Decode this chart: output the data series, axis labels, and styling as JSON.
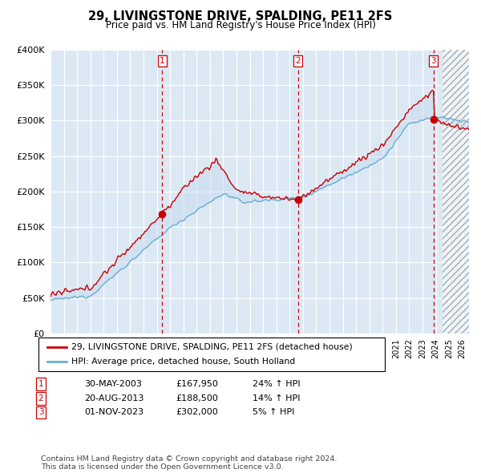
{
  "title": "29, LIVINGSTONE DRIVE, SPALDING, PE11 2FS",
  "subtitle": "Price paid vs. HM Land Registry's House Price Index (HPI)",
  "ylabel_ticks": [
    "£0",
    "£50K",
    "£100K",
    "£150K",
    "£200K",
    "£250K",
    "£300K",
    "£350K",
    "£400K"
  ],
  "ylim": [
    0,
    400000
  ],
  "xlim_start": 1995.0,
  "xlim_end": 2026.5,
  "hpi_color": "#6aaed6",
  "price_color": "#cc0000",
  "fill_color": "#c6daef",
  "vline_color": "#cc0000",
  "bg_color": "#dce9f5",
  "legend_label_price": "29, LIVINGSTONE DRIVE, SPALDING, PE11 2FS (detached house)",
  "legend_label_hpi": "HPI: Average price, detached house, South Holland",
  "transactions": [
    {
      "num": 1,
      "date": "30-MAY-2003",
      "price": "£167,950",
      "change": "24% ↑ HPI",
      "year": 2003.41,
      "price_val": 167950
    },
    {
      "num": 2,
      "date": "20-AUG-2013",
      "price": "£188,500",
      "change": "14% ↑ HPI",
      "year": 2013.63,
      "price_val": 188500
    },
    {
      "num": 3,
      "date": "01-NOV-2023",
      "price": "£302,000",
      "change": "5% ↑ HPI",
      "year": 2023.83,
      "price_val": 302000
    }
  ],
  "footer": "Contains HM Land Registry data © Crown copyright and database right 2024.\nThis data is licensed under the Open Government Licence v3.0.",
  "hatch_start": 2024.5,
  "grid_color": "#ffffff"
}
